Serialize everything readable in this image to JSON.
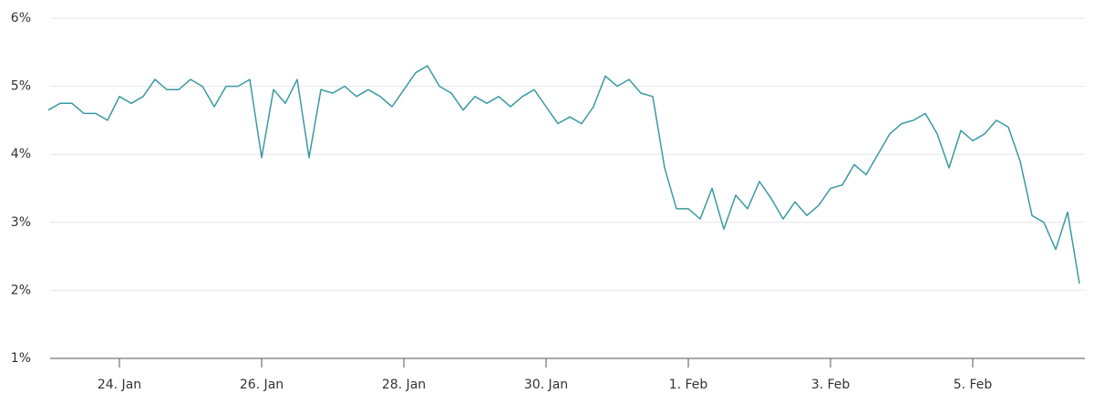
{
  "chart_data": {
    "type": "line",
    "categories": [
      null,
      null,
      null,
      null,
      null,
      null,
      "24. Jan",
      null,
      null,
      null,
      null,
      null,
      null,
      null,
      null,
      null,
      null,
      null,
      "26. Jan",
      null,
      null,
      null,
      null,
      null,
      null,
      null,
      null,
      null,
      null,
      null,
      "28. Jan",
      null,
      null,
      null,
      null,
      null,
      null,
      null,
      null,
      null,
      null,
      null,
      "30. Jan",
      null,
      null,
      null,
      null,
      null,
      null,
      null,
      null,
      null,
      null,
      null,
      "1. Feb",
      null,
      null,
      null,
      null,
      null,
      null,
      null,
      null,
      null,
      null,
      null,
      "3. Feb",
      null,
      null,
      null,
      null,
      null,
      null,
      null,
      null,
      null,
      null,
      null,
      "5. Feb",
      null,
      null,
      null,
      null,
      null,
      null,
      null,
      null,
      null
    ],
    "values": [
      4.65,
      4.75,
      4.75,
      4.6,
      4.6,
      4.5,
      4.85,
      4.75,
      4.85,
      5.1,
      4.95,
      4.95,
      5.1,
      5.0,
      4.7,
      5.0,
      5.0,
      5.1,
      3.95,
      4.95,
      4.75,
      5.1,
      3.95,
      4.95,
      4.9,
      5.0,
      4.85,
      4.95,
      4.85,
      4.7,
      4.95,
      5.2,
      5.3,
      5.0,
      4.9,
      4.65,
      4.85,
      4.75,
      4.85,
      4.7,
      4.85,
      4.95,
      4.7,
      4.45,
      4.55,
      4.45,
      4.7,
      5.15,
      5.0,
      5.1,
      4.9,
      4.85,
      3.8,
      3.2,
      3.2,
      3.05,
      3.5,
      2.9,
      3.4,
      3.2,
      3.6,
      3.35,
      3.05,
      3.3,
      3.1,
      3.25,
      3.5,
      3.55,
      3.85,
      3.7,
      4.0,
      4.3,
      4.45,
      4.5,
      4.6,
      4.3,
      3.8,
      4.35,
      4.2,
      4.3,
      4.5,
      4.4,
      3.9,
      3.1,
      3.0,
      2.6,
      3.15,
      2.1
    ],
    "color": "#3a9aa0",
    "ylim": [
      1,
      6
    ],
    "yticks": [
      {
        "value": 1,
        "label": "1%"
      },
      {
        "value": 2,
        "label": "2%"
      },
      {
        "value": 3,
        "label": "3%"
      },
      {
        "value": 4,
        "label": "4%"
      },
      {
        "value": 5,
        "label": "5%"
      },
      {
        "value": 6,
        "label": "6%"
      }
    ],
    "grid": true
  }
}
